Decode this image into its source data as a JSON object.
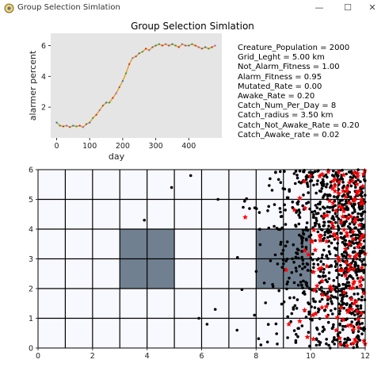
{
  "window": {
    "title": "Group Selection Simlation",
    "icons": [
      "app-icon",
      "minimize-icon",
      "maximize-icon",
      "close-icon"
    ]
  },
  "figure_title": "Group Selection Simlation",
  "params": [
    "Creature_Population = 2000",
    "Grid_Leght = 5.00 km",
    "Not_Alarm_Fitness = 1.00",
    "Alarm_Fitness = 0.95",
    "Mutated_Rate = 0.00",
    "Awake_Rate = 0.20",
    "Catch_Num_Per_Day = 8",
    "Catch_radius = 3.50 km",
    "Catch_Not_Awake_Rate = 0.20",
    "Catch_Awake_rate = 0.02"
  ],
  "chart_data": [
    {
      "type": "line",
      "xlabel": "day",
      "ylabel": "alarmer percent",
      "xlim": [
        -18,
        500
      ],
      "ylim": [
        0.0,
        6.8
      ],
      "xticks": [
        0,
        100,
        200,
        300,
        400
      ],
      "yticks": [
        2,
        4,
        6
      ],
      "background": "#e5e5e5",
      "grid": false,
      "series": [
        {
          "color": "#e8a33a",
          "points": [
            [
              0,
              1.0
            ],
            [
              10,
              0.8
            ],
            [
              20,
              0.75
            ],
            [
              30,
              0.8
            ],
            [
              40,
              0.7
            ],
            [
              50,
              0.8
            ],
            [
              60,
              0.75
            ],
            [
              70,
              0.8
            ],
            [
              80,
              0.7
            ],
            [
              90,
              0.9
            ],
            [
              100,
              1.0
            ],
            [
              110,
              1.3
            ],
            [
              120,
              1.5
            ],
            [
              130,
              1.8
            ],
            [
              140,
              2.1
            ],
            [
              150,
              2.3
            ],
            [
              160,
              2.3
            ],
            [
              170,
              2.6
            ],
            [
              180,
              2.9
            ],
            [
              190,
              3.3
            ],
            [
              200,
              3.7
            ],
            [
              210,
              4.2
            ],
            [
              220,
              4.8
            ],
            [
              230,
              5.2
            ],
            [
              240,
              5.3
            ],
            [
              250,
              5.5
            ],
            [
              260,
              5.6
            ],
            [
              270,
              5.8
            ],
            [
              280,
              5.7
            ],
            [
              290,
              5.9
            ],
            [
              300,
              6.0
            ],
            [
              310,
              6.1
            ],
            [
              320,
              6.0
            ],
            [
              330,
              6.1
            ],
            [
              340,
              6.0
            ],
            [
              350,
              6.1
            ],
            [
              360,
              6.0
            ],
            [
              370,
              5.9
            ],
            [
              380,
              6.1
            ],
            [
              390,
              6.0
            ],
            [
              400,
              6.0
            ],
            [
              410,
              6.1
            ],
            [
              420,
              6.0
            ],
            [
              430,
              5.9
            ],
            [
              440,
              5.8
            ],
            [
              450,
              5.9
            ],
            [
              460,
              5.8
            ],
            [
              470,
              5.9
            ],
            [
              480,
              6.0
            ]
          ]
        }
      ]
    },
    {
      "type": "scatter",
      "xlim": [
        0,
        12
      ],
      "ylim": [
        0,
        6
      ],
      "xticks": [
        0,
        2,
        4,
        6,
        8,
        10,
        12
      ],
      "yticks": [
        0,
        1,
        2,
        3,
        4,
        5,
        6
      ],
      "background": "#f8f8ff",
      "grid_lines": [
        1,
        2,
        3,
        4,
        5,
        6,
        7,
        8,
        9,
        10,
        11
      ],
      "highlight_cells": [
        [
          3,
          2,
          5,
          4
        ],
        [
          8,
          2,
          10,
          4
        ]
      ],
      "highlight_color": "#708090",
      "black_point_color": "#000000",
      "red_point_color": "#ff0000",
      "black_count": 900,
      "red_count": 150
    }
  ]
}
